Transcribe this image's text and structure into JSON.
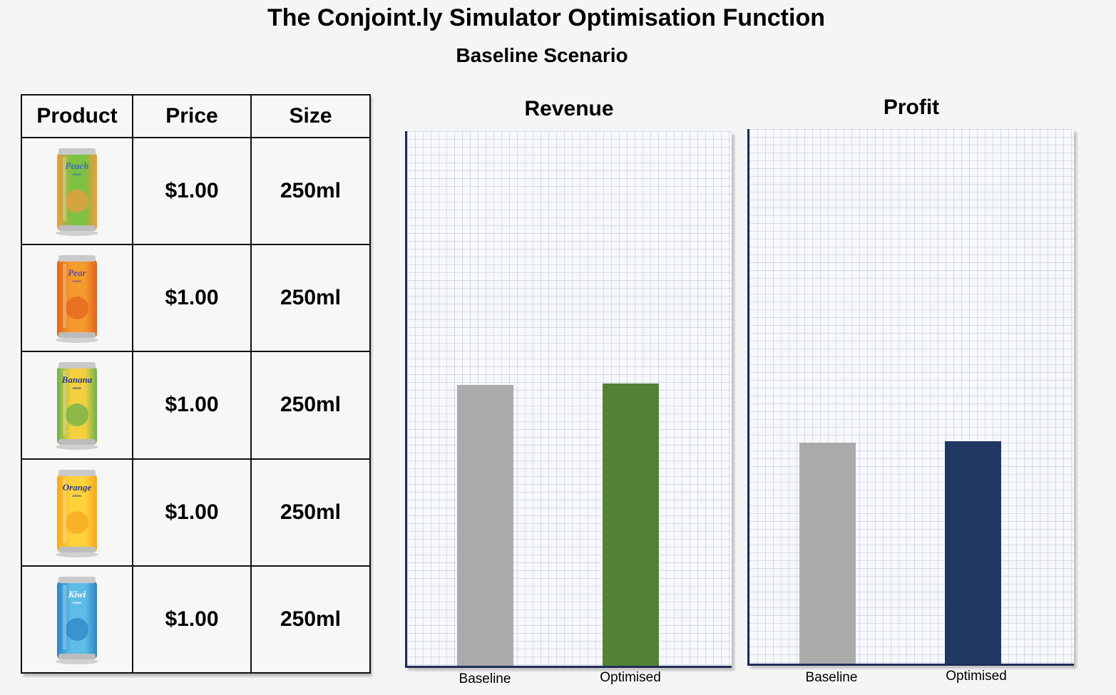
{
  "title": "The Conjoint.ly Simulator Optimisation Function",
  "subtitle": "Baseline Scenario",
  "table": {
    "headers": [
      "Product",
      "Price",
      "Size"
    ],
    "rows": [
      {
        "product": "Peach",
        "product_sub": "DRINK",
        "price": "$1.00",
        "size": "250ml",
        "can_colors": [
          "#7cc142",
          "#f19a3e"
        ],
        "label_color": "#3a6fb5"
      },
      {
        "product": "Pear",
        "product_sub": "DRINK",
        "price": "$1.00",
        "size": "250ml",
        "can_colors": [
          "#f59a2c",
          "#e2641d"
        ],
        "label_color": "#6a4ba0"
      },
      {
        "product": "Banana",
        "product_sub": "DRINK",
        "price": "$1.00",
        "size": "250ml",
        "can_colors": [
          "#f4d03f",
          "#6db24a"
        ],
        "label_color": "#2d3f8c"
      },
      {
        "product": "Orange",
        "product_sub": "DRINK",
        "price": "$1.00",
        "size": "250ml",
        "can_colors": [
          "#ffd23a",
          "#f7a71f"
        ],
        "label_color": "#2c3f8a"
      },
      {
        "product": "Kiwi",
        "product_sub": "DRINK",
        "price": "$1.00",
        "size": "250ml",
        "can_colors": [
          "#5dbde6",
          "#2f85c6"
        ],
        "label_color": "#ffffff"
      }
    ]
  },
  "chart_data": [
    {
      "type": "bar",
      "title": "Revenue",
      "categories": [
        "Baseline",
        "Optimised"
      ],
      "values": [
        52.5,
        52.8
      ],
      "colors": [
        "#ababab",
        "#538135"
      ],
      "ylim": [
        0,
        100
      ],
      "grid": true
    },
    {
      "type": "bar",
      "title": "Profit",
      "categories": [
        "Baseline",
        "Optimised"
      ],
      "values": [
        41.3,
        41.6
      ],
      "colors": [
        "#ababab",
        "#203864"
      ],
      "ylim": [
        0,
        100
      ],
      "grid": true
    }
  ]
}
